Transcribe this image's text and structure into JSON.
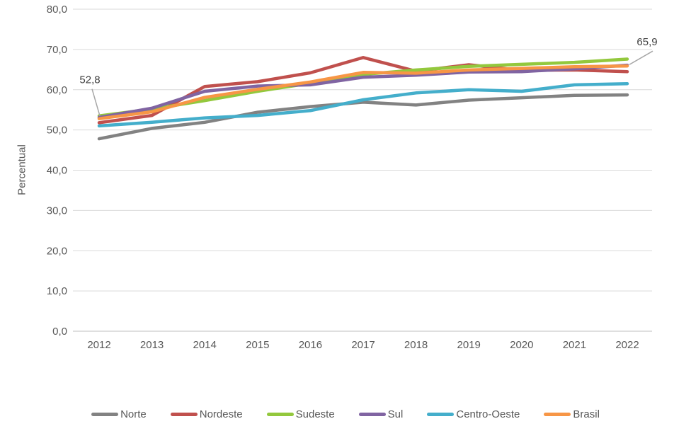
{
  "chart_data": {
    "type": "line",
    "title": "",
    "xlabel": "",
    "ylabel": "Percentual",
    "x": [
      2012,
      2013,
      2014,
      2015,
      2016,
      2017,
      2018,
      2019,
      2020,
      2021,
      2022
    ],
    "xtick_labels": [
      "2012",
      "2013",
      "2014",
      "2015",
      "2016",
      "2017",
      "2018",
      "2019",
      "2020",
      "2021",
      "2022"
    ],
    "ylim": [
      0,
      80
    ],
    "ytick_step": 10,
    "ytick_labels": [
      "0,0",
      "10,0",
      "20,0",
      "30,0",
      "40,0",
      "50,0",
      "60,0",
      "70,0",
      "80,0"
    ],
    "grid": true,
    "legend_position": "bottom",
    "series": [
      {
        "name": "Norte",
        "color": "#828282",
        "values": [
          47.8,
          50.4,
          51.9,
          54.4,
          55.8,
          56.9,
          56.2,
          57.4,
          58.0,
          58.6,
          58.7
        ]
      },
      {
        "name": "Nordeste",
        "color": "#C0504D",
        "values": [
          51.8,
          53.6,
          60.8,
          62.0,
          64.2,
          68.0,
          64.6,
          66.2,
          64.8,
          64.9,
          64.5
        ]
      },
      {
        "name": "Sudeste",
        "color": "#93C83D",
        "values": [
          53.5,
          55.2,
          57.3,
          59.6,
          61.6,
          63.8,
          64.9,
          65.8,
          66.3,
          66.8,
          67.6
        ]
      },
      {
        "name": "Sul",
        "color": "#8064A2",
        "values": [
          53.1,
          55.4,
          59.6,
          60.9,
          61.2,
          63.1,
          63.6,
          64.4,
          64.5,
          65.2,
          66.1
        ]
      },
      {
        "name": "Centro-Oeste",
        "color": "#44AECB",
        "values": [
          51.0,
          51.9,
          53.0,
          53.6,
          54.8,
          57.5,
          59.2,
          60.0,
          59.6,
          61.2,
          61.5
        ]
      },
      {
        "name": "Brasil",
        "color": "#F79646",
        "values": [
          52.8,
          54.5,
          58.1,
          60.1,
          61.9,
          64.3,
          64.1,
          64.9,
          65.3,
          65.7,
          65.9
        ]
      }
    ],
    "annotations": [
      {
        "text": "52,8",
        "series": "Brasil",
        "year": 2012,
        "value": 52.8,
        "placement": "above-left"
      },
      {
        "text": "65,9",
        "series": "Brasil",
        "year": 2022,
        "value": 65.9,
        "placement": "above-right"
      }
    ]
  },
  "colors": {
    "grid": "#D9D9D9",
    "axis_line": "#BFBFBF",
    "tick_text": "#595959",
    "callout_line": "#A6A6A6",
    "background": "#FFFFFF"
  }
}
